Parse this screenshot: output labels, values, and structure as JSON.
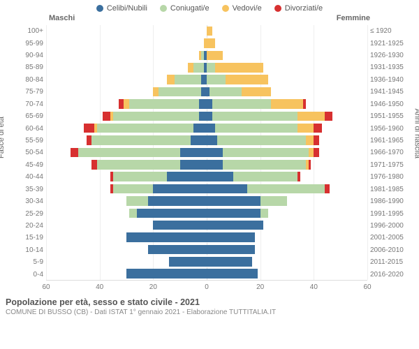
{
  "chart": {
    "type": "population-pyramid",
    "legend": [
      {
        "label": "Celibi/Nubili",
        "color": "#3b6f9e"
      },
      {
        "label": "Coniugati/e",
        "color": "#b7d7a8"
      },
      {
        "label": "Vedovi/e",
        "color": "#f7c35f"
      },
      {
        "label": "Divorziati/e",
        "color": "#d73030"
      }
    ],
    "male_header": "Maschi",
    "female_header": "Femmine",
    "ylabel_left": "Fasce di età",
    "ylabel_right": "Anni di nascita",
    "xmax": 60,
    "xticks": [
      60,
      40,
      20,
      0,
      20,
      40,
      60
    ],
    "age_bands": [
      "100+",
      "95-99",
      "90-94",
      "85-89",
      "80-84",
      "75-79",
      "70-74",
      "65-69",
      "60-64",
      "55-59",
      "50-54",
      "45-49",
      "40-44",
      "35-39",
      "30-34",
      "25-29",
      "20-24",
      "15-19",
      "10-14",
      "5-9",
      "0-4"
    ],
    "birth_years": [
      "≤ 1920",
      "1921-1925",
      "1926-1930",
      "1931-1935",
      "1936-1940",
      "1941-1945",
      "1946-1950",
      "1951-1955",
      "1956-1960",
      "1961-1965",
      "1966-1970",
      "1971-1975",
      "1976-1980",
      "1981-1985",
      "1986-1990",
      "1991-1995",
      "1996-2000",
      "2001-2005",
      "2006-2010",
      "2011-2015",
      "2016-2020"
    ],
    "rows": [
      {
        "m": [
          0,
          0,
          0,
          0
        ],
        "f": [
          0,
          0,
          2,
          0
        ]
      },
      {
        "m": [
          0,
          0,
          1,
          0
        ],
        "f": [
          0,
          0,
          3,
          0
        ]
      },
      {
        "m": [
          1,
          1,
          1,
          0
        ],
        "f": [
          0,
          0,
          6,
          0
        ]
      },
      {
        "m": [
          1,
          4,
          2,
          0
        ],
        "f": [
          0,
          3,
          18,
          0
        ]
      },
      {
        "m": [
          2,
          10,
          3,
          0
        ],
        "f": [
          0,
          7,
          16,
          0
        ]
      },
      {
        "m": [
          2,
          16,
          2,
          0
        ],
        "f": [
          1,
          12,
          11,
          0
        ]
      },
      {
        "m": [
          3,
          26,
          2,
          2
        ],
        "f": [
          2,
          22,
          12,
          1
        ]
      },
      {
        "m": [
          3,
          32,
          1,
          3
        ],
        "f": [
          2,
          32,
          10,
          3
        ]
      },
      {
        "m": [
          5,
          36,
          1,
          4
        ],
        "f": [
          3,
          31,
          6,
          3
        ]
      },
      {
        "m": [
          6,
          37,
          0,
          2
        ],
        "f": [
          4,
          33,
          3,
          2
        ]
      },
      {
        "m": [
          10,
          38,
          0,
          3
        ],
        "f": [
          6,
          32,
          2,
          2
        ]
      },
      {
        "m": [
          10,
          31,
          0,
          2
        ],
        "f": [
          6,
          31,
          1,
          1
        ]
      },
      {
        "m": [
          15,
          20,
          0,
          1
        ],
        "f": [
          10,
          24,
          0,
          1
        ]
      },
      {
        "m": [
          20,
          15,
          0,
          1
        ],
        "f": [
          15,
          29,
          0,
          2
        ]
      },
      {
        "m": [
          22,
          8,
          0,
          0
        ],
        "f": [
          20,
          10,
          0,
          0
        ]
      },
      {
        "m": [
          26,
          3,
          0,
          0
        ],
        "f": [
          20,
          3,
          0,
          0
        ]
      },
      {
        "m": [
          20,
          0,
          0,
          0
        ],
        "f": [
          21,
          0,
          0,
          0
        ]
      },
      {
        "m": [
          30,
          0,
          0,
          0
        ],
        "f": [
          18,
          0,
          0,
          0
        ]
      },
      {
        "m": [
          22,
          0,
          0,
          0
        ],
        "f": [
          18,
          0,
          0,
          0
        ]
      },
      {
        "m": [
          14,
          0,
          0,
          0
        ],
        "f": [
          17,
          0,
          0,
          0
        ]
      },
      {
        "m": [
          30,
          0,
          0,
          0
        ],
        "f": [
          19,
          0,
          0,
          0
        ]
      }
    ],
    "title": "Popolazione per età, sesso e stato civile - 2021",
    "subtitle": "COMUNE DI BUSSO (CB) - Dati ISTAT 1° gennaio 2021 - Elaborazione TUTTITALIA.IT",
    "bar_gap_pct": 22,
    "grid_color": "#eeeeee",
    "axis_font_size": 10
  }
}
